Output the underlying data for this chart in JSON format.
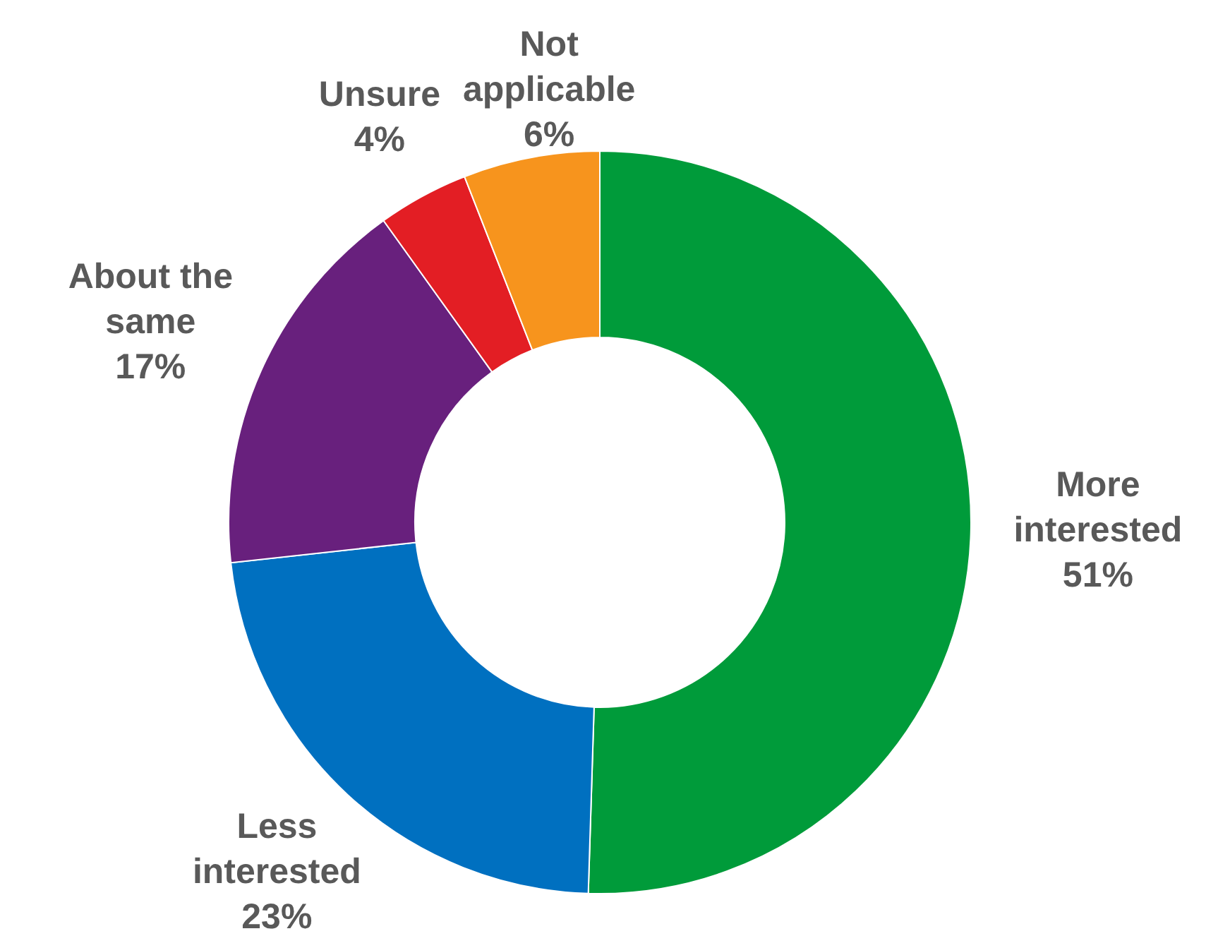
{
  "chart_data": {
    "type": "donut",
    "categories": [
      "More interested",
      "Less interested",
      "About the same",
      "Unsure",
      "Not applicable"
    ],
    "values": [
      51,
      23,
      17,
      4,
      6
    ],
    "value_labels": [
      "51%",
      "23%",
      "17%",
      "4%",
      "6%"
    ],
    "colors": [
      "#009b3a",
      "#0070c0",
      "#68207d",
      "#e31e24",
      "#f7941d"
    ]
  }
}
